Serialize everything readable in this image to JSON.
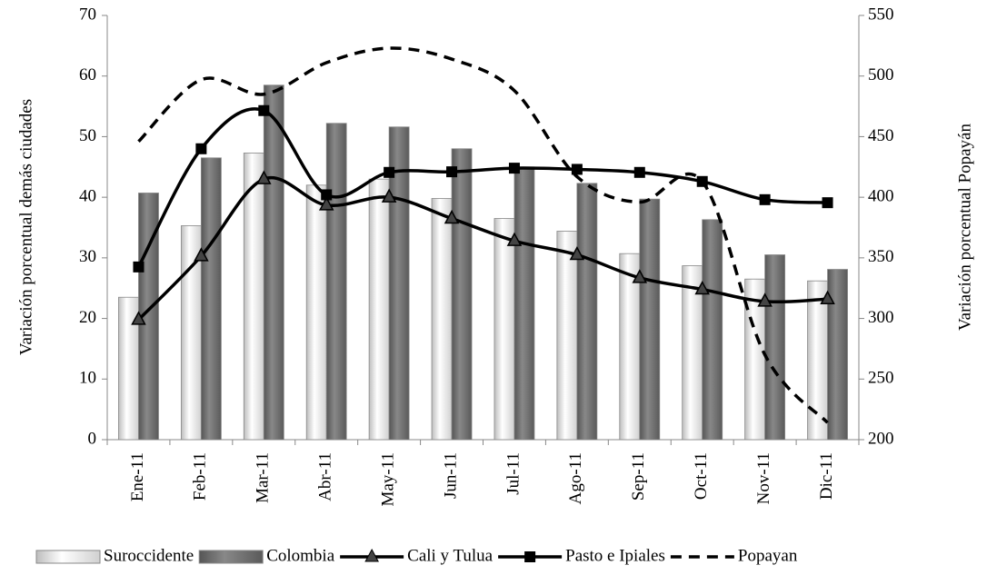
{
  "chart_data": {
    "type": "bar",
    "ylabel": "Variación porcentual demás ciudades",
    "y2label": "Variación porcentual Popayán",
    "categories": [
      "Ene-11",
      "Feb-11",
      "Mar-11",
      "Abr-11",
      "May-11",
      "Jun-11",
      "Jul-11",
      "Ago-11",
      "Sep-11",
      "Oct-11",
      "Nov-11",
      "Dic-11"
    ],
    "ylim": [
      0,
      70
    ],
    "yticks": [
      0,
      10,
      20,
      30,
      40,
      50,
      60,
      70
    ],
    "y2lim": [
      200,
      550
    ],
    "y2ticks": [
      200,
      250,
      300,
      350,
      400,
      450,
      500,
      550
    ],
    "series": [
      {
        "name": "Suroccidente",
        "type": "bar",
        "color": "#e4e4e4",
        "values": [
          23.5,
          35.3,
          47.3,
          42,
          43,
          39.8,
          36.5,
          34.4,
          30.7,
          28.7,
          26.5,
          26.2
        ]
      },
      {
        "name": "Colombia",
        "type": "bar",
        "color": "#6e6e6e",
        "values": [
          40.7,
          46.5,
          58.5,
          52.2,
          51.6,
          48,
          45,
          42.3,
          39.7,
          36.3,
          30.5,
          28.1
        ]
      },
      {
        "name": "Cali y Tulua",
        "type": "line",
        "marker": "triangle",
        "color": "#000000",
        "values": [
          19.8,
          30.3,
          43,
          38.7,
          40,
          36.5,
          32.8,
          30.5,
          26.7,
          24.8,
          22.8,
          23.2
        ]
      },
      {
        "name": "Pasto e Ipiales",
        "type": "line",
        "marker": "square",
        "color": "#000000",
        "values": [
          28.5,
          48,
          54.3,
          40.4,
          44.1,
          44.2,
          44.8,
          44.6,
          44.1,
          42.6,
          39.6,
          39.1
        ]
      },
      {
        "name": "Popayan",
        "type": "line",
        "dashed": true,
        "axis": "y2",
        "color": "#000000",
        "values": [
          446,
          497,
          485,
          511,
          523,
          514,
          488,
          417,
          396,
          413,
          270,
          214
        ]
      }
    ]
  }
}
